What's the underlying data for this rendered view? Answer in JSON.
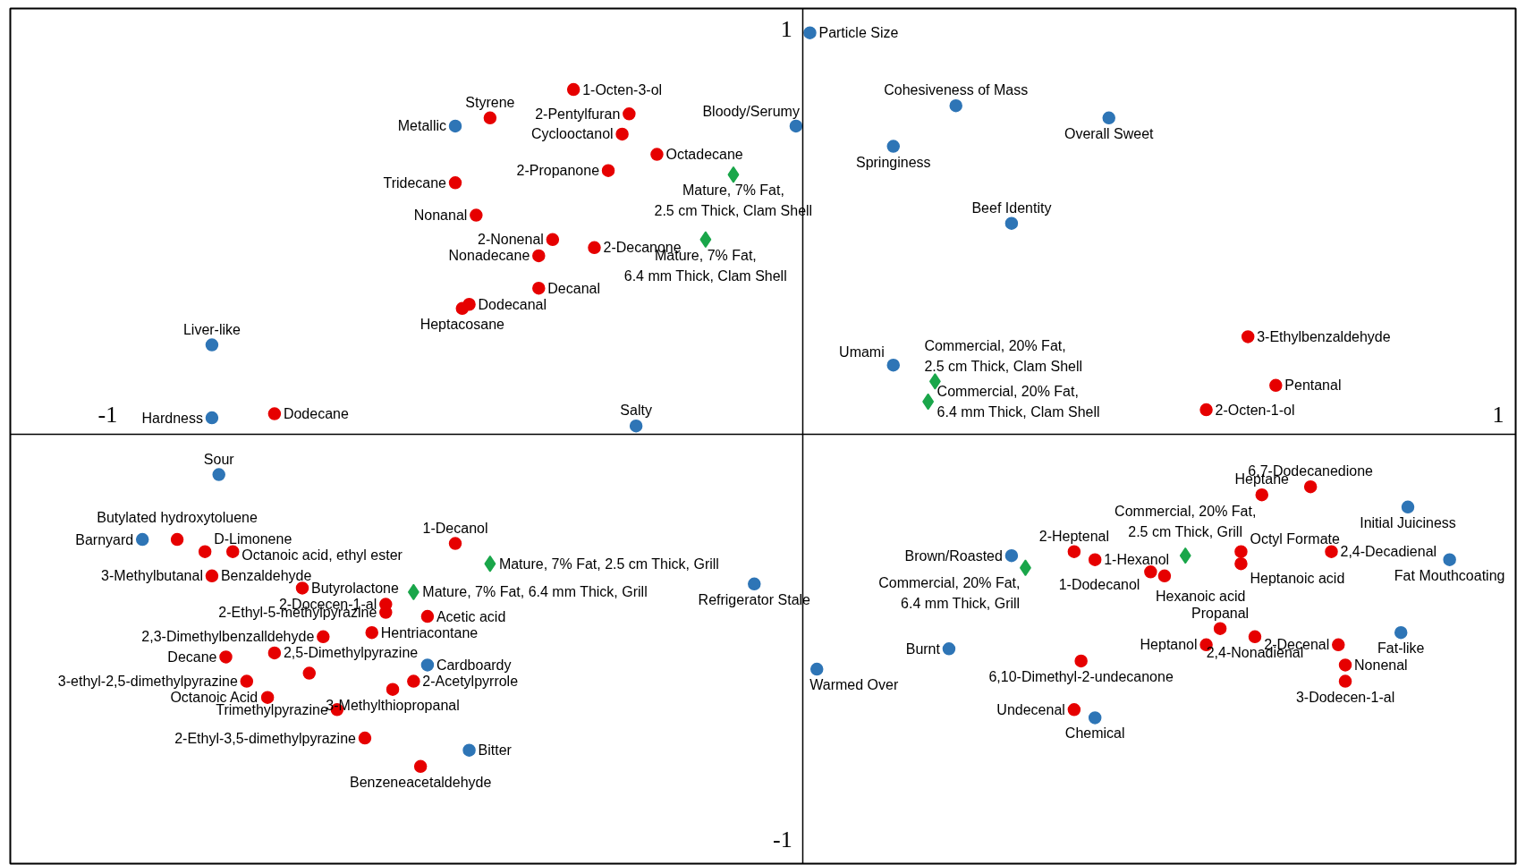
{
  "chart_data": {
    "type": "scatter",
    "xlim": [
      -1.14,
      1.025
    ],
    "ylim": [
      -1.06,
      1.05
    ],
    "xticks": [
      -1,
      1
    ],
    "yticks": [
      -1,
      1
    ],
    "grid": false,
    "series": [
      {
        "color": "#e60000",
        "marker": "circle",
        "x": [
          -0.33,
          -0.25,
          -0.45,
          -0.26,
          -0.21,
          -0.28,
          -0.5,
          -0.47,
          -0.36,
          -0.3,
          -0.38,
          -0.38,
          -0.48,
          -0.49,
          -0.76,
          0.64,
          0.68,
          0.58,
          0.73,
          0.66,
          0.76,
          0.63,
          0.63,
          0.39,
          0.42,
          0.5,
          0.52,
          0.6,
          0.58,
          0.65,
          0.77,
          0.78,
          0.78,
          0.4,
          0.39,
          -0.9,
          -0.86,
          -0.82,
          -0.85,
          -0.5,
          -0.72,
          -0.6,
          -0.6,
          -0.54,
          -0.62,
          -0.69,
          -0.76,
          -0.83,
          -0.8,
          -0.77,
          -0.59,
          -0.56,
          -0.67,
          -0.63,
          -0.55,
          -0.71
        ],
        "values": [
          0.85,
          0.79,
          0.78,
          0.74,
          0.69,
          0.65,
          0.62,
          0.54,
          0.48,
          0.46,
          0.44,
          0.36,
          0.32,
          0.31,
          0.05,
          0.24,
          0.12,
          0.06,
          -0.13,
          -0.15,
          -0.29,
          -0.29,
          -0.32,
          -0.29,
          -0.31,
          -0.34,
          -0.35,
          -0.48,
          -0.52,
          -0.5,
          -0.52,
          -0.57,
          -0.61,
          -0.56,
          -0.68,
          -0.26,
          -0.29,
          -0.29,
          -0.35,
          -0.27,
          -0.38,
          -0.42,
          -0.44,
          -0.45,
          -0.49,
          -0.5,
          -0.54,
          -0.55,
          -0.61,
          -0.65,
          -0.63,
          -0.61,
          -0.68,
          -0.75,
          -0.82,
          -0.59
        ]
      },
      {
        "color": "#2e75b6",
        "marker": "circle",
        "x": [
          0.01,
          -0.5,
          -0.01,
          0.22,
          0.44,
          0.13,
          0.3,
          -0.85,
          0.13,
          -0.85,
          -0.24,
          -0.84,
          -0.95,
          -0.07,
          -0.54,
          -0.48,
          0.02,
          0.21,
          0.42,
          0.3,
          0.87,
          0.93,
          0.86
        ],
        "values": [
          0.99,
          0.76,
          0.76,
          0.81,
          0.78,
          0.71,
          0.52,
          0.22,
          0.17,
          0.04,
          0.02,
          -0.1,
          -0.26,
          -0.37,
          -0.57,
          -0.78,
          -0.58,
          -0.53,
          -0.7,
          -0.3,
          -0.18,
          -0.31,
          -0.49
        ]
      },
      {
        "color": "#1aa64a",
        "marker": "diamond",
        "x": [
          -0.1,
          -0.14,
          0.19,
          0.18,
          -0.45,
          -0.56,
          0.55,
          0.32
        ],
        "values": [
          0.64,
          0.48,
          0.13,
          0.08,
          -0.32,
          -0.39,
          -0.3,
          -0.33
        ]
      }
    ],
    "annotations": [
      {
        "text": "1-Octen-3-ol",
        "x": -0.33,
        "y": 0.85
      },
      {
        "text": "2-Pentylfuran",
        "x": -0.25,
        "y": 0.79
      },
      {
        "text": "Styrene",
        "x": -0.45,
        "y": 0.78
      },
      {
        "text": "Cyclooctanol",
        "x": -0.26,
        "y": 0.74
      },
      {
        "text": "Octadecane",
        "x": -0.21,
        "y": 0.69
      },
      {
        "text": "2-Propanone",
        "x": -0.28,
        "y": 0.65
      },
      {
        "text": "Tridecane",
        "x": -0.5,
        "y": 0.62
      },
      {
        "text": "Nonanal",
        "x": -0.47,
        "y": 0.54
      },
      {
        "text": "2-Nonenal",
        "x": -0.36,
        "y": 0.48
      },
      {
        "text": "2-Decanone",
        "x": -0.3,
        "y": 0.46
      },
      {
        "text": "Nonadecane",
        "x": -0.38,
        "y": 0.44
      },
      {
        "text": "Decanal",
        "x": -0.38,
        "y": 0.36
      },
      {
        "text": "Dodecanal",
        "x": -0.48,
        "y": 0.32
      },
      {
        "text": "Heptacosane",
        "x": -0.49,
        "y": 0.31
      },
      {
        "text": "Dodecane",
        "x": -0.76,
        "y": 0.05
      },
      {
        "text": "3-Ethylbenzaldehyde",
        "x": 0.64,
        "y": 0.24
      },
      {
        "text": "Pentanal",
        "x": 0.68,
        "y": 0.12
      },
      {
        "text": "2-Octen-1-ol",
        "x": 0.58,
        "y": 0.06
      },
      {
        "text": "6,7-Dodecanedione",
        "x": 0.73,
        "y": -0.13
      },
      {
        "text": "Heptane",
        "x": 0.66,
        "y": -0.15
      },
      {
        "text": "2,4-Decadienal",
        "x": 0.76,
        "y": -0.29
      },
      {
        "text": "Octyl Formate",
        "x": 0.63,
        "y": -0.29
      },
      {
        "text": "Heptanoic acid",
        "x": 0.63,
        "y": -0.32
      },
      {
        "text": "2-Heptenal",
        "x": 0.39,
        "y": -0.29
      },
      {
        "text": "1-Hexanol",
        "x": 0.42,
        "y": -0.31
      },
      {
        "text": "1-Dodecanol",
        "x": 0.5,
        "y": -0.34
      },
      {
        "text": "Hexanoic acid",
        "x": 0.52,
        "y": -0.35
      },
      {
        "text": "Propanal",
        "x": 0.6,
        "y": -0.48
      },
      {
        "text": "Heptanol",
        "x": 0.58,
        "y": -0.52
      },
      {
        "text": "2,4-Nonadienal",
        "x": 0.65,
        "y": -0.5
      },
      {
        "text": "2-Decenal",
        "x": 0.77,
        "y": -0.52
      },
      {
        "text": "Nonenal",
        "x": 0.78,
        "y": -0.57
      },
      {
        "text": "3-Dodecen-1-al",
        "x": 0.78,
        "y": -0.61
      },
      {
        "text": "6,10-Dimethyl-2-undecanone",
        "x": 0.4,
        "y": -0.56
      },
      {
        "text": "Undecenal",
        "x": 0.39,
        "y": -0.68
      },
      {
        "text": "Butylated hydroxytoluene",
        "x": -0.9,
        "y": -0.26
      },
      {
        "text": "D-Limonene",
        "x": -0.86,
        "y": -0.29
      },
      {
        "text": "Octanoic acid, ethyl ester",
        "x": -0.82,
        "y": -0.29
      },
      {
        "text": "3-Methylbutanal",
        "x": -0.85,
        "y": -0.35
      },
      {
        "text": "Benzaldehyde",
        "x": -0.85,
        "y": -0.35
      },
      {
        "text": "1-Decanol",
        "x": -0.5,
        "y": -0.27
      },
      {
        "text": "Butyrolactone",
        "x": -0.72,
        "y": -0.38
      },
      {
        "text": "2-Docecen-1-al",
        "x": -0.6,
        "y": -0.42
      },
      {
        "text": "2-Ethyl-5-methylpyrazine",
        "x": -0.6,
        "y": -0.44
      },
      {
        "text": "Acetic acid",
        "x": -0.54,
        "y": -0.45
      },
      {
        "text": "Hentriacontane",
        "x": -0.62,
        "y": -0.49
      },
      {
        "text": "2,3-Dimethylbenzalldehyde",
        "x": -0.69,
        "y": -0.5
      },
      {
        "text": "2,5-Dimethylpyrazine",
        "x": -0.76,
        "y": -0.54
      },
      {
        "text": "Decane",
        "x": -0.83,
        "y": -0.55
      },
      {
        "text": "3-ethyl-2,5-dimethylpyrazine",
        "x": -0.8,
        "y": -0.61
      },
      {
        "text": "Octanoic Acid",
        "x": -0.77,
        "y": -0.65
      },
      {
        "text": "3-Methylthiopropanal",
        "x": -0.59,
        "y": -0.63
      },
      {
        "text": "2-Acetylpyrrole",
        "x": -0.56,
        "y": -0.61
      },
      {
        "text": "Trimethylpyrazine",
        "x": -0.67,
        "y": -0.68
      },
      {
        "text": "2-Ethyl-3,5-dimethylpyrazine",
        "x": -0.63,
        "y": -0.75
      },
      {
        "text": "Benzeneacetaldehyde",
        "x": -0.55,
        "y": -0.82
      },
      {
        "text": "Particle Size",
        "x": 0.01,
        "y": 0.99
      },
      {
        "text": "Metallic",
        "x": -0.5,
        "y": 0.76
      },
      {
        "text": "Bloody/Serumy",
        "x": -0.01,
        "y": 0.76
      },
      {
        "text": "Cohesiveness of Mass",
        "x": 0.22,
        "y": 0.81
      },
      {
        "text": "Overall Sweet",
        "x": 0.44,
        "y": 0.78
      },
      {
        "text": "Springiness",
        "x": 0.13,
        "y": 0.71
      },
      {
        "text": "Beef Identity",
        "x": 0.3,
        "y": 0.52
      },
      {
        "text": "Liver-like",
        "x": -0.85,
        "y": 0.22
      },
      {
        "text": "Umami",
        "x": 0.13,
        "y": 0.17
      },
      {
        "text": "Hardness",
        "x": -0.85,
        "y": 0.04
      },
      {
        "text": "Salty",
        "x": -0.24,
        "y": 0.02
      },
      {
        "text": "Sour",
        "x": -0.84,
        "y": -0.1
      },
      {
        "text": "Barnyard",
        "x": -0.95,
        "y": -0.26
      },
      {
        "text": "Refrigerator Stale",
        "x": -0.07,
        "y": -0.37
      },
      {
        "text": "Cardboardy",
        "x": -0.54,
        "y": -0.57
      },
      {
        "text": "Bitter",
        "x": -0.48,
        "y": -0.78
      },
      {
        "text": "Warmed Over",
        "x": 0.02,
        "y": -0.58
      },
      {
        "text": "Burnt",
        "x": 0.21,
        "y": -0.53
      },
      {
        "text": "Chemical",
        "x": 0.42,
        "y": -0.7
      },
      {
        "text": "Brown/Roasted",
        "x": 0.3,
        "y": -0.3
      },
      {
        "text": "Initial Juiciness",
        "x": 0.87,
        "y": -0.18
      },
      {
        "text": "Fat Mouthcoating",
        "x": 0.93,
        "y": -0.31
      },
      {
        "text": "Fat-like",
        "x": 0.86,
        "y": -0.49
      },
      {
        "text": "Mature, 7% Fat,\n2.5 cm Thick, Clam Shell",
        "x": -0.1,
        "y": 0.64
      },
      {
        "text": "Mature, 7% Fat,\n6.4 mm Thick, Clam Shell",
        "x": -0.14,
        "y": 0.48
      },
      {
        "text": "Commercial, 20% Fat,\n2.5 cm Thick, Clam Shell",
        "x": 0.19,
        "y": 0.13
      },
      {
        "text": "Commercial, 20% Fat,\n6.4 mm Thick, Clam Shell",
        "x": 0.18,
        "y": 0.08
      },
      {
        "text": "Mature, 7% Fat, 2.5 cm Thick, Grill",
        "x": -0.45,
        "y": -0.32
      },
      {
        "text": "Mature, 7% Fat, 6.4 mm Thick, Grill",
        "x": -0.56,
        "y": -0.39
      },
      {
        "text": "Commercial, 20% Fat,\n2.5 cm Thick, Grill",
        "x": 0.55,
        "y": -0.3
      },
      {
        "text": "Commercial, 20% Fat,\n6.4 mm Thick, Grill",
        "x": 0.32,
        "y": -0.33
      }
    ]
  }
}
